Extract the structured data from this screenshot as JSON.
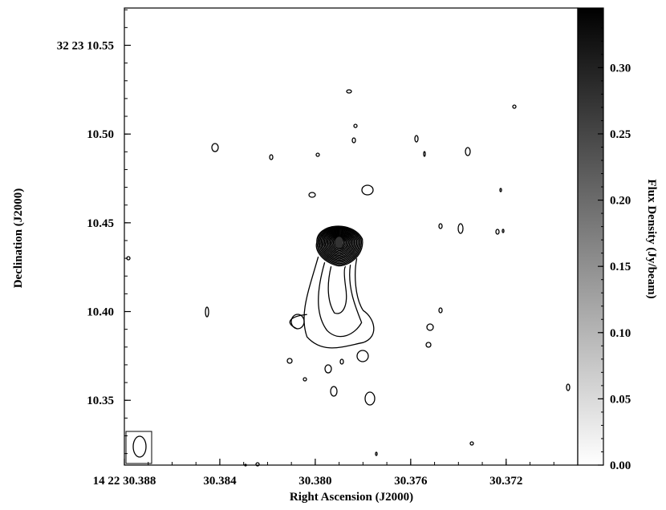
{
  "chart_data": {
    "type": "contour",
    "xlabel": "Right Ascension (J2000)",
    "ylabel": "Declination (J2000)",
    "colorbar_label": "Flux Density (Jy/beam)",
    "x_ticks": [
      {
        "value": 30.388,
        "label": "14 22 30.388"
      },
      {
        "value": 30.384,
        "label": "30.384"
      },
      {
        "value": 30.38,
        "label": "30.380"
      },
      {
        "value": 30.376,
        "label": "30.376"
      },
      {
        "value": 30.372,
        "label": "30.372"
      }
    ],
    "y_ticks": [
      {
        "value": 10.55,
        "label": "32 23 10.55"
      },
      {
        "value": 10.5,
        "label": "10.50"
      },
      {
        "value": 10.45,
        "label": "10.45"
      },
      {
        "value": 10.4,
        "label": "10.40"
      },
      {
        "value": 10.35,
        "label": "10.35"
      }
    ],
    "colorbar_ticks": [
      "0.00",
      "0.05",
      "0.10",
      "0.15",
      "0.20",
      "0.25",
      "0.30"
    ],
    "colorbar_values": [
      0.0,
      0.05,
      0.1,
      0.15,
      0.2,
      0.25,
      0.3
    ],
    "colorbar_range": [
      0.0,
      0.345
    ],
    "xlim": [
      30.388,
      30.369
    ],
    "ylim": [
      10.3135,
      10.571
    ],
    "x_axis_inverted": true,
    "colormap": "grayscale (white = low, black = high)",
    "source_peak": {
      "ra": 30.379,
      "dec": 10.439,
      "flux": 0.33
    },
    "contour_levels": 18,
    "beam_shown": true,
    "beam_position": "bottom-left"
  }
}
